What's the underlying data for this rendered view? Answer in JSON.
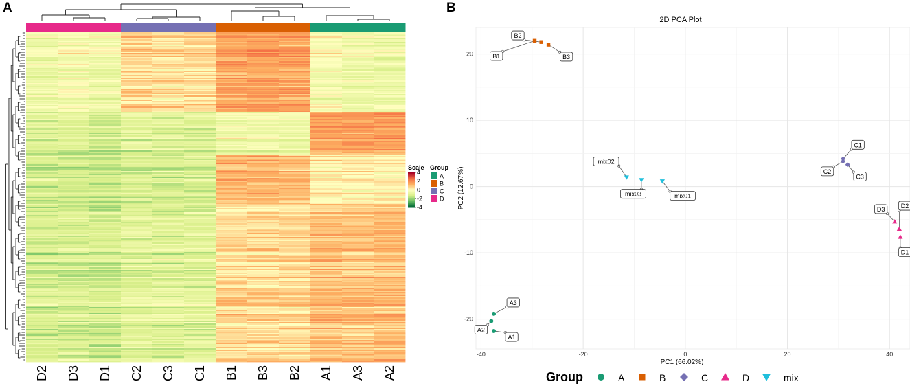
{
  "panels": {
    "a": "A",
    "b": "B"
  },
  "chart_data": [
    {
      "type": "heatmap",
      "title": "",
      "columns": [
        "D2",
        "D3",
        "D1",
        "C2",
        "C3",
        "C1",
        "B1",
        "B3",
        "B2",
        "A1",
        "A3",
        "A2"
      ],
      "column_groups": [
        "D",
        "D",
        "D",
        "C",
        "C",
        "C",
        "B",
        "B",
        "B",
        "A",
        "A",
        "A"
      ],
      "group_colors": {
        "A": "#1a9b73",
        "B": "#d95f02",
        "C": "#7570b3",
        "D": "#e7298a"
      },
      "group_order": [
        "A",
        "B",
        "C",
        "D"
      ],
      "color_scale": {
        "title": "Scale",
        "ticks": [
          4,
          2,
          0,
          -2,
          -4
        ],
        "range": [
          -4,
          4
        ],
        "colors": [
          "#006837",
          "#66bd63",
          "#d9ef8b",
          "#ffffbf",
          "#fdae61",
          "#f46d43",
          "#a50026"
        ]
      },
      "group_legend_title": "Group",
      "row_blocks": [
        {
          "share": 0.24,
          "mean": [
            -0.6,
            -0.3,
            -0.6,
            0.7,
            0.5,
            0.6,
            1.5,
            1.6,
            1.5,
            -0.3,
            -0.5,
            -0.6
          ]
        },
        {
          "share": 0.13,
          "mean": [
            -1.1,
            -1.0,
            -1.2,
            -0.9,
            -1.0,
            -1.0,
            -0.5,
            -0.4,
            -0.5,
            1.6,
            1.7,
            1.7
          ]
        },
        {
          "share": 0.15,
          "mean": [
            -1.3,
            -1.3,
            -1.4,
            -1.2,
            -1.2,
            -1.2,
            1.2,
            1.3,
            1.1,
            0.2,
            0.3,
            0.2
          ]
        },
        {
          "share": 0.48,
          "mean": [
            -1.2,
            -1.2,
            -1.3,
            -1.0,
            -1.0,
            -1.0,
            0.6,
            0.6,
            0.6,
            1.0,
            1.0,
            1.1
          ]
        }
      ]
    },
    {
      "type": "scatter",
      "title": "2D PCA Plot",
      "xlabel": "PC1 (66.02%)",
      "ylabel": "PC2 (12.67%)",
      "xlim": [
        -41,
        44
      ],
      "ylim": [
        -24.5,
        24
      ],
      "xticks": [
        -40,
        -20,
        0,
        20,
        40
      ],
      "yticks": [
        -20,
        -10,
        0,
        10,
        20
      ],
      "grid": true,
      "legend_title": "Group",
      "legend_position": "bottom",
      "groups": [
        {
          "name": "A",
          "color": "#1a9b73",
          "shape": "circle"
        },
        {
          "name": "B",
          "color": "#d95f02",
          "shape": "square"
        },
        {
          "name": "C",
          "color": "#7570b3",
          "shape": "diamond"
        },
        {
          "name": "D",
          "color": "#e7298a",
          "shape": "triangle-up"
        },
        {
          "name": "mix",
          "color": "#1fbfdc",
          "shape": "triangle-down"
        }
      ],
      "points": [
        {
          "label": "A1",
          "group": "A",
          "x": -37.5,
          "y": -21.8,
          "lx": -34.0,
          "ly": -22.7
        },
        {
          "label": "A2",
          "group": "A",
          "x": -38.0,
          "y": -20.3,
          "lx": -40.0,
          "ly": -21.6
        },
        {
          "label": "A3",
          "group": "A",
          "x": -37.5,
          "y": -19.2,
          "lx": -33.7,
          "ly": -17.5
        },
        {
          "label": "B1",
          "group": "B",
          "x": -29.5,
          "y": 22.0,
          "lx": -37.0,
          "ly": 19.7
        },
        {
          "label": "B2",
          "group": "B",
          "x": -28.2,
          "y": 21.8,
          "lx": -32.8,
          "ly": 22.8
        },
        {
          "label": "B3",
          "group": "B",
          "x": -26.8,
          "y": 21.4,
          "lx": -23.3,
          "ly": 19.6
        },
        {
          "label": "C1",
          "group": "C",
          "x": 30.9,
          "y": 4.2,
          "lx": 33.8,
          "ly": 6.3
        },
        {
          "label": "C2",
          "group": "C",
          "x": 30.9,
          "y": 3.8,
          "lx": 27.8,
          "ly": 2.3
        },
        {
          "label": "C3",
          "group": "C",
          "x": 31.8,
          "y": 3.3,
          "lx": 34.2,
          "ly": 1.5
        },
        {
          "label": "D1",
          "group": "D",
          "x": 42.1,
          "y": -7.6,
          "lx": 43.0,
          "ly": -9.9
        },
        {
          "label": "D2",
          "group": "D",
          "x": 41.9,
          "y": -6.4,
          "lx": 43.0,
          "ly": -2.9
        },
        {
          "label": "D3",
          "group": "D",
          "x": 41.0,
          "y": -5.3,
          "lx": 38.3,
          "ly": -3.4
        },
        {
          "label": "mix01",
          "group": "mix",
          "x": -4.5,
          "y": 0.8,
          "lx": -0.5,
          "ly": -1.4
        },
        {
          "label": "mix02",
          "group": "mix",
          "x": -11.5,
          "y": 1.4,
          "lx": -15.5,
          "ly": 3.8
        },
        {
          "label": "mix03",
          "group": "mix",
          "x": -8.6,
          "y": 1.0,
          "lx": -10.2,
          "ly": -1.1
        }
      ]
    }
  ]
}
